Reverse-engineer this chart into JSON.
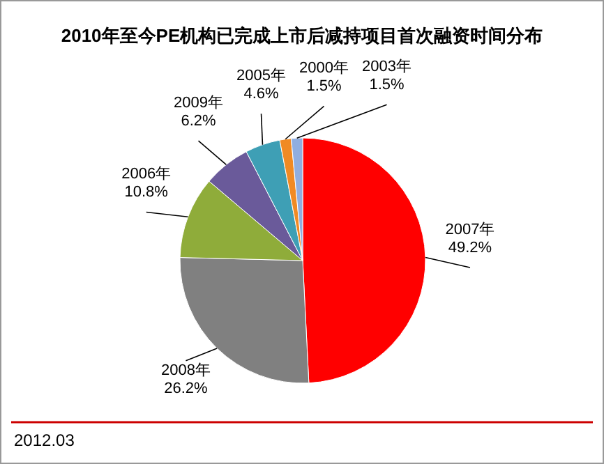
{
  "chart_data": {
    "type": "pie",
    "title": "2010年至今PE机构已完成上市后减持项目首次融资时间分布",
    "categories": [
      "2007年",
      "2008年",
      "2006年",
      "2009年",
      "2005年",
      "2000年",
      "2003年"
    ],
    "values": [
      49.2,
      26.2,
      10.8,
      6.2,
      4.6,
      1.5,
      1.5
    ],
    "colors": [
      "#ff0000",
      "#808080",
      "#8fac3a",
      "#6a5a9a",
      "#3e9fb5",
      "#f08a24",
      "#90aee0"
    ],
    "value_labels": [
      "49.2%",
      "26.2%",
      "10.8%",
      "6.2%",
      "4.6%",
      "1.5%",
      "1.5%"
    ],
    "annotations": [
      "2012.03"
    ]
  }
}
